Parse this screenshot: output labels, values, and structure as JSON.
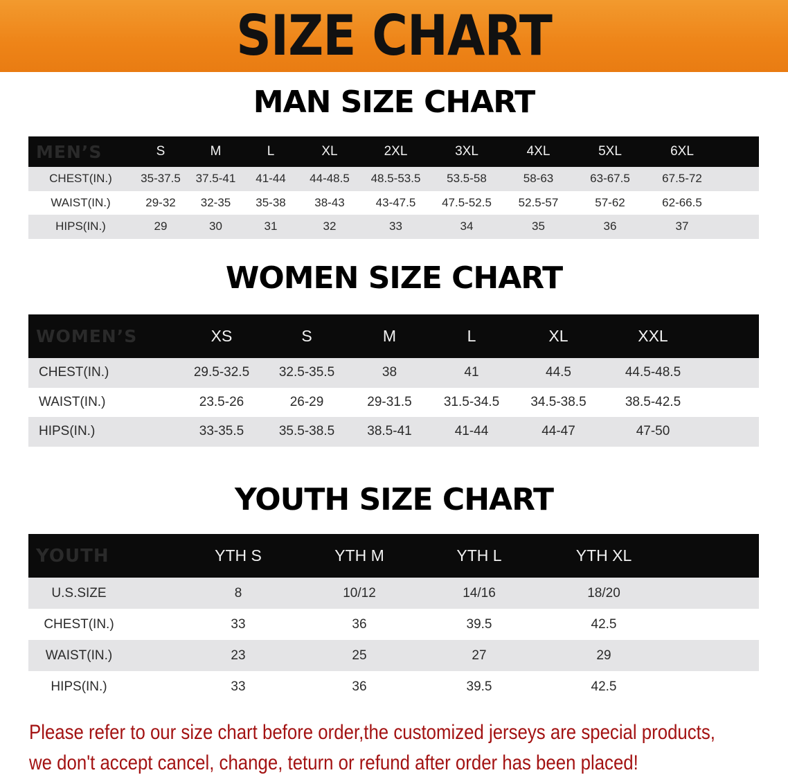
{
  "banner": {
    "title": "SIZE CHART",
    "color": "#ee8418"
  },
  "men": {
    "title": "MAN SIZE CHART",
    "header_label": "MEN’S",
    "sizes": [
      "S",
      "M",
      "L",
      "XL",
      "2XL",
      "3XL",
      "4XL",
      "5XL",
      "6XL"
    ],
    "rows": [
      {
        "label": "CHEST(IN.)",
        "values": [
          "35-37.5",
          "37.5-41",
          "41-44",
          "44-48.5",
          "48.5-53.5",
          "53.5-58",
          "58-63",
          "63-67.5",
          "67.5-72"
        ]
      },
      {
        "label": "WAIST(IN.)",
        "values": [
          "29-32",
          "32-35",
          "35-38",
          "38-43",
          "43-47.5",
          "47.5-52.5",
          "52.5-57",
          "57-62",
          "62-66.5"
        ]
      },
      {
        "label": "HIPS(IN.)",
        "values": [
          "29",
          "30",
          "31",
          "32",
          "33",
          "34",
          "35",
          "36",
          "37"
        ]
      }
    ]
  },
  "women": {
    "title": "WOMEN SIZE CHART",
    "header_label": "WOMEN’S",
    "sizes": [
      "XS",
      "S",
      "M",
      "L",
      "XL",
      "XXL"
    ],
    "rows": [
      {
        "label": "CHEST(IN.)",
        "values": [
          "29.5-32.5",
          "32.5-35.5",
          "38",
          "41",
          "44.5",
          "44.5-48.5"
        ]
      },
      {
        "label": "WAIST(IN.)",
        "values": [
          "23.5-26",
          "26-29",
          "29-31.5",
          "31.5-34.5",
          "34.5-38.5",
          "38.5-42.5"
        ]
      },
      {
        "label": "HIPS(IN.)",
        "values": [
          "33-35.5",
          "35.5-38.5",
          "38.5-41",
          "41-44",
          "44-47",
          "47-50"
        ]
      }
    ]
  },
  "youth": {
    "title": "YOUTH SIZE CHART",
    "header_label": "YOUTH",
    "sizes": [
      "YTH S",
      "YTH M",
      "YTH L",
      "YTH XL"
    ],
    "rows": [
      {
        "label": "U.S.SIZE",
        "values": [
          "8",
          "10/12",
          "14/16",
          "18/20"
        ]
      },
      {
        "label": "CHEST(IN.)",
        "values": [
          "33",
          "36",
          "39.5",
          "42.5"
        ]
      },
      {
        "label": "WAIST(IN.)",
        "values": [
          "23",
          "25",
          "27",
          "29"
        ]
      },
      {
        "label": "HIPS(IN.)",
        "values": [
          "33",
          "36",
          "39.5",
          "42.5"
        ]
      }
    ]
  },
  "notice": {
    "line1": "Please refer to our size chart before order,the customized jerseys are special products,",
    "line2": "we don't accept cancel, change, teturn or refund after order has been placed!",
    "color": "#a31212"
  }
}
